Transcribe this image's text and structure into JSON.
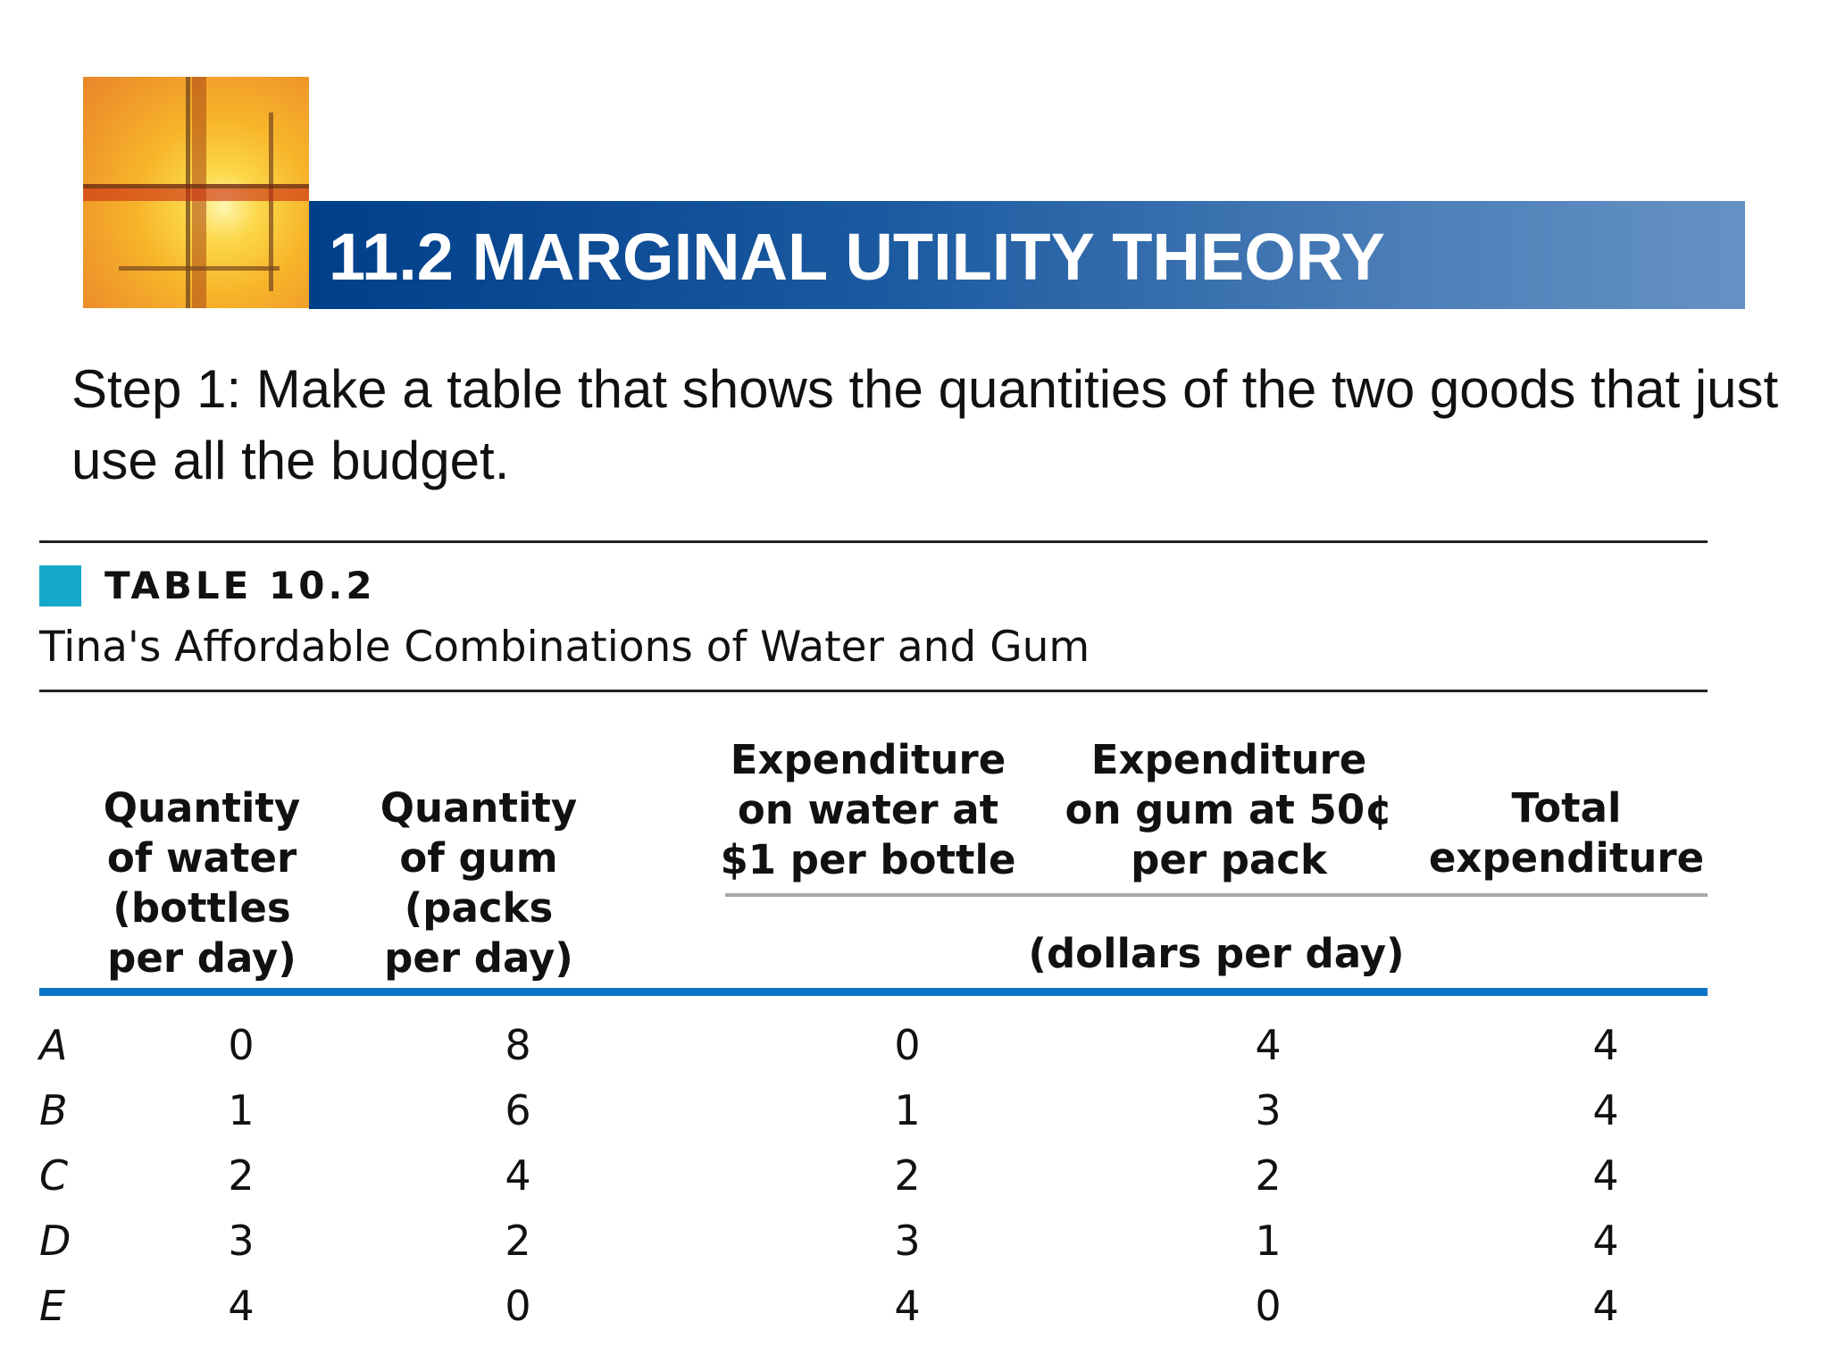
{
  "slide": {
    "title": "11.2 MARGINAL UTILITY THEORY",
    "step_text": "Step 1: Make a table that shows the quantities of the two goods that just use all the budget."
  },
  "table": {
    "label": "TABLE 10.2",
    "caption": "Tina's Affordable Combinations of Water and Gum",
    "headers": [
      "Quantity\nof water\n(bottles\nper day)",
      "Quantity\nof gum\n(packs\nper day)",
      "Expenditure\non water at\n$1 per bottle",
      "Expenditure\non gum at 50¢\nper pack",
      "Total\nexpenditure"
    ],
    "units_label": "(dollars per day)",
    "rows": [
      {
        "label": "A",
        "cells": [
          "0",
          "8",
          "0",
          "4",
          "4"
        ]
      },
      {
        "label": "B",
        "cells": [
          "1",
          "6",
          "1",
          "3",
          "4"
        ]
      },
      {
        "label": "C",
        "cells": [
          "2",
          "4",
          "2",
          "2",
          "4"
        ]
      },
      {
        "label": "D",
        "cells": [
          "3",
          "2",
          "3",
          "1",
          "4"
        ]
      },
      {
        "label": "E",
        "cells": [
          "4",
          "0",
          "4",
          "0",
          "4"
        ]
      }
    ]
  },
  "colors": {
    "title_bar_start": "#003f8a",
    "title_bar_end": "#6592c4",
    "table_marker": "#14a9c9",
    "header_rule": "#0b74c4"
  }
}
